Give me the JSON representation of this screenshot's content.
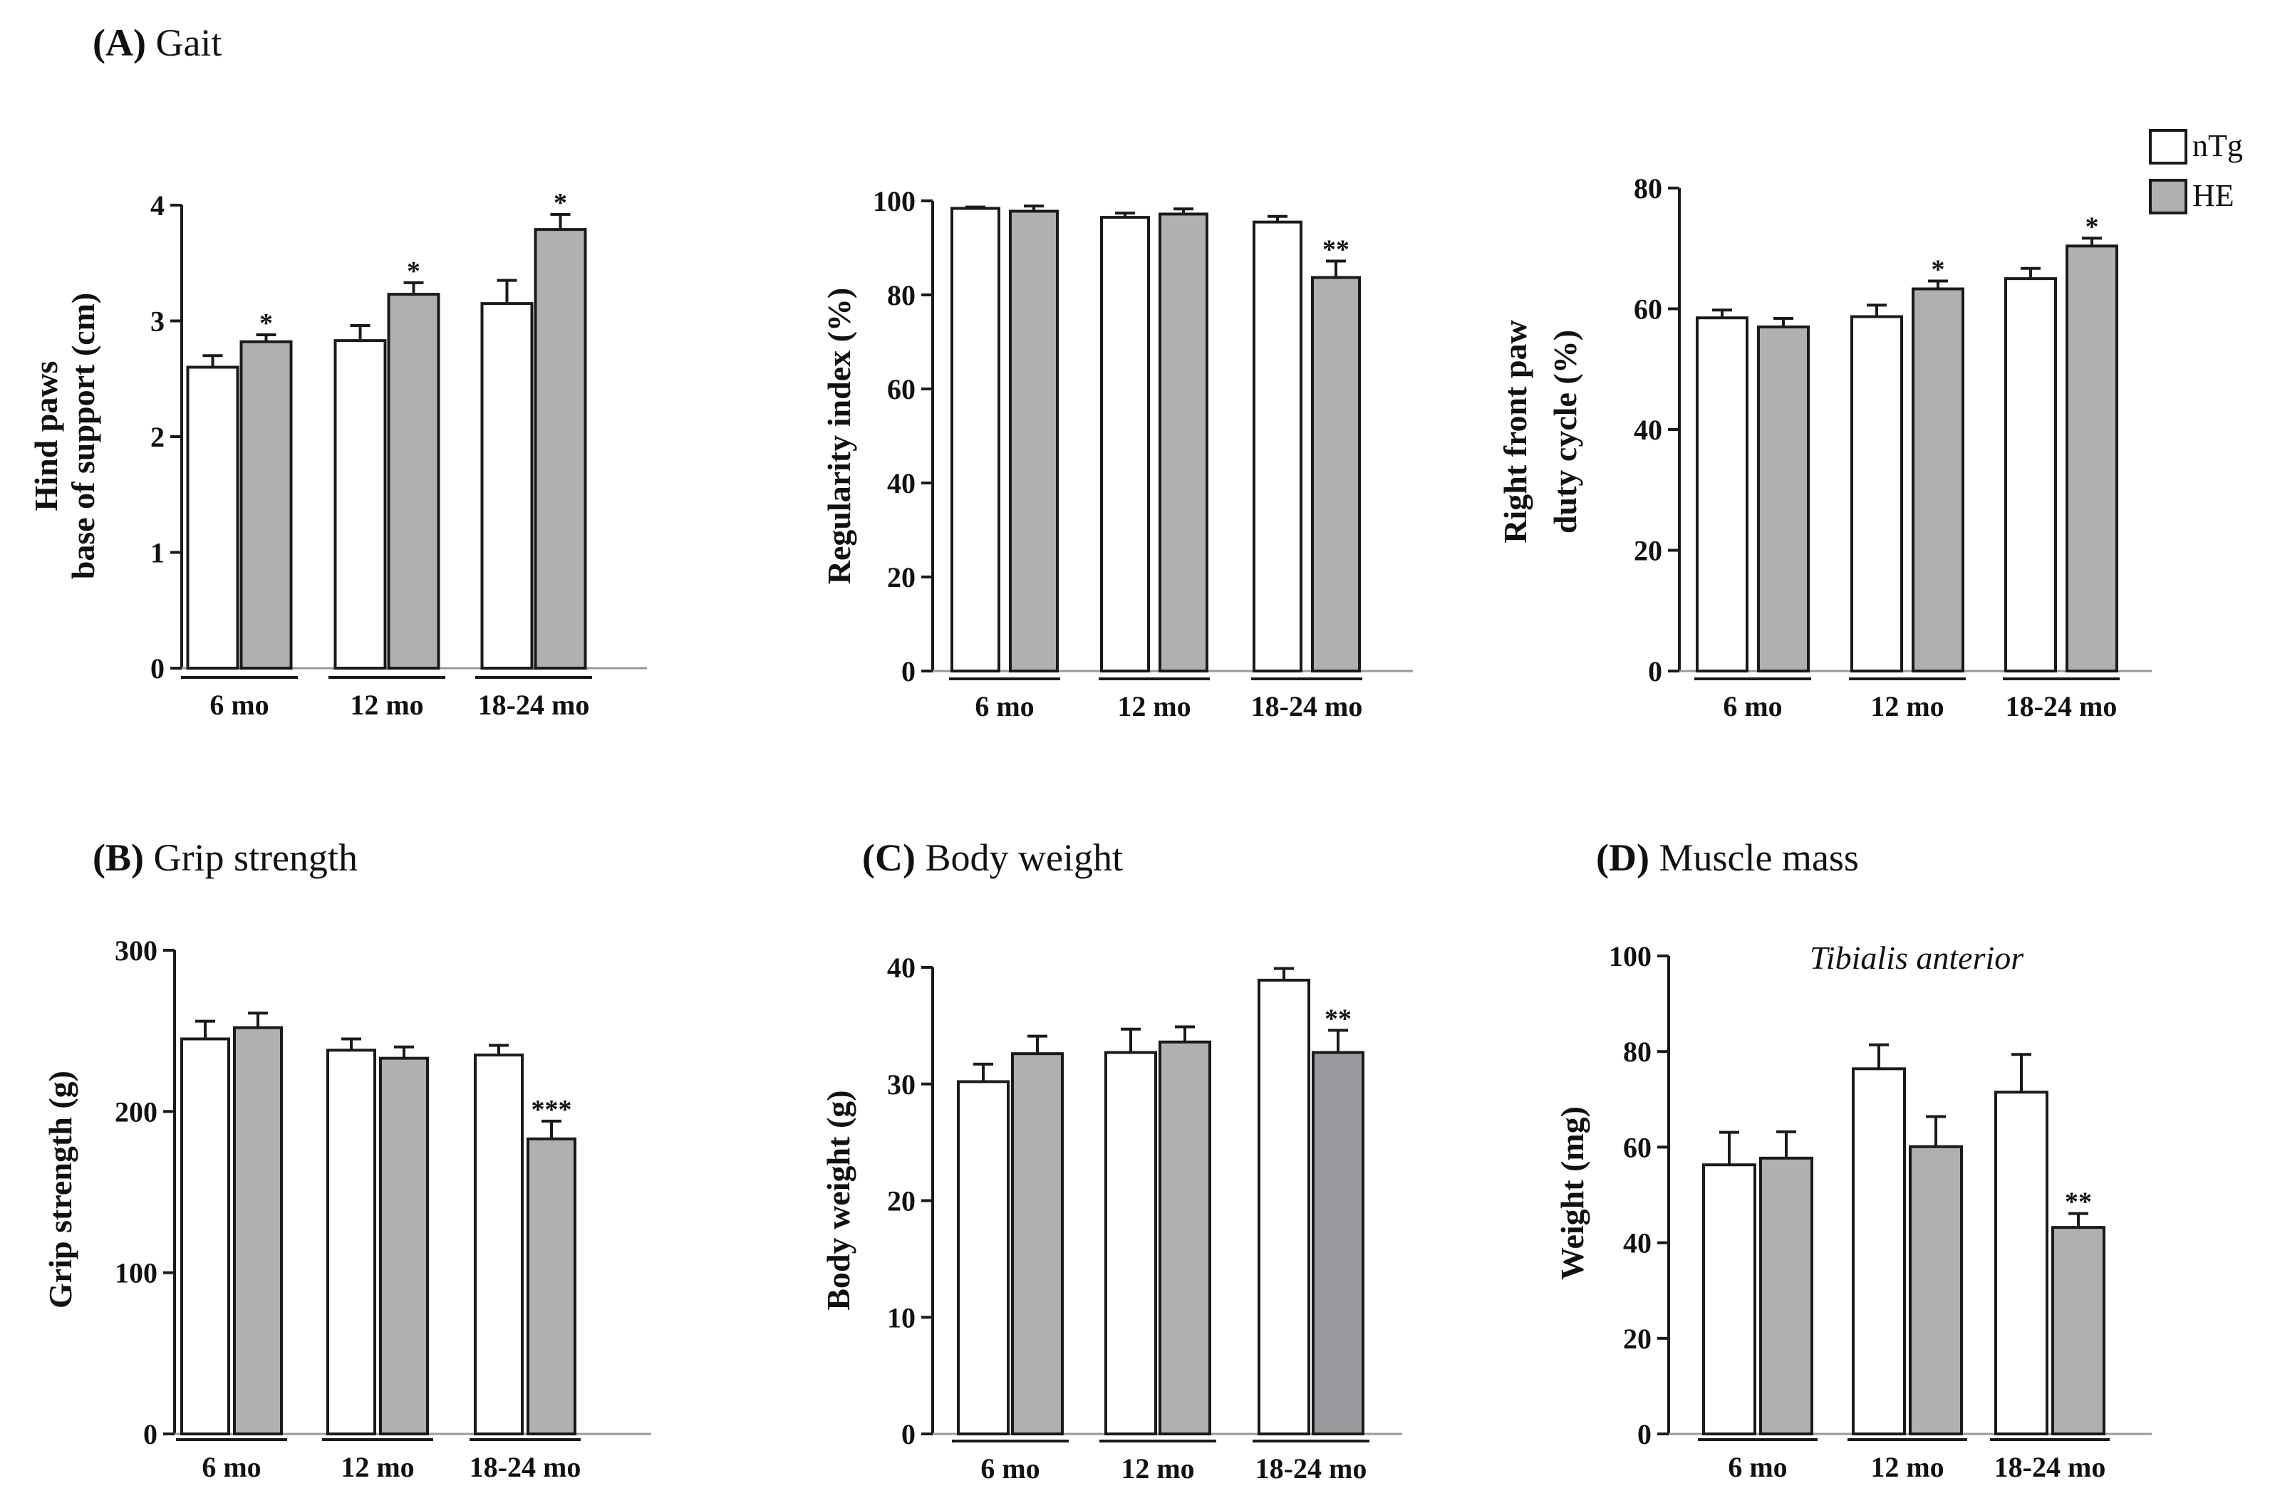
{
  "legend": [
    {
      "label": "nTg",
      "color": "#ffffff"
    },
    {
      "label": "HE",
      "color": "#b0b0b0"
    }
  ],
  "colors": {
    "ntg": "#ffffff",
    "he": "#b0b0b0",
    "he_dark": "#9a9a9f",
    "stroke": "#1a1a1a"
  },
  "chart_data": [
    {
      "type": "bar",
      "panel_label": "(A)",
      "panel_title": "Gait",
      "categories": [
        "6 mo",
        "12 mo",
        "18-24 mo"
      ],
      "ylabel": [
        "Hind paws",
        "base of support (cm)"
      ],
      "ylim": [
        0,
        4
      ],
      "yticks": [
        0,
        1,
        2,
        3,
        4
      ],
      "series": [
        {
          "name": "nTg",
          "values": [
            2.6,
            2.83,
            3.15
          ],
          "errors": [
            0.1,
            0.13,
            0.2
          ]
        },
        {
          "name": "HE",
          "values": [
            2.82,
            3.23,
            3.79
          ],
          "errors": [
            0.06,
            0.1,
            0.13
          ]
        }
      ],
      "significance": [
        {
          "category": 0,
          "series": 1,
          "label": "*"
        },
        {
          "category": 1,
          "series": 1,
          "label": "*"
        },
        {
          "category": 2,
          "series": 1,
          "label": "*"
        }
      ]
    },
    {
      "type": "bar",
      "panel_label": "",
      "panel_title": "",
      "categories": [
        "6 mo",
        "12 mo",
        "18-24 mo"
      ],
      "ylabel": [
        "Regularity index (%)"
      ],
      "ylim": [
        0,
        100
      ],
      "yticks": [
        0,
        20,
        40,
        60,
        80,
        100
      ],
      "series": [
        {
          "name": "nTg",
          "values": [
            98.4,
            96.5,
            95.5
          ],
          "errors": [
            0.3,
            0.9,
            1.2
          ]
        },
        {
          "name": "HE",
          "values": [
            97.8,
            97.2,
            83.7
          ],
          "errors": [
            1.1,
            1.1,
            3.5
          ]
        }
      ],
      "significance": [
        {
          "category": 2,
          "series": 1,
          "label": "**"
        }
      ]
    },
    {
      "type": "bar",
      "panel_label": "",
      "panel_title": "",
      "categories": [
        "6 mo",
        "12 mo",
        "18-24 mo"
      ],
      "ylabel": [
        "Right front paw",
        "duty cycle (%)"
      ],
      "ylim": [
        0,
        80
      ],
      "yticks": [
        0,
        20,
        40,
        60,
        80
      ],
      "series": [
        {
          "name": "nTg",
          "values": [
            58.5,
            58.7,
            65.0
          ],
          "errors": [
            1.3,
            1.9,
            1.7
          ]
        },
        {
          "name": "HE",
          "values": [
            57.0,
            63.3,
            70.4
          ],
          "errors": [
            1.4,
            1.3,
            1.3
          ]
        }
      ],
      "significance": [
        {
          "category": 1,
          "series": 1,
          "label": "*"
        },
        {
          "category": 2,
          "series": 1,
          "label": "*"
        }
      ]
    },
    {
      "type": "bar",
      "panel_label": "(B)",
      "panel_title": "Grip strength",
      "categories": [
        "6 mo",
        "12 mo",
        "18-24 mo"
      ],
      "ylabel": [
        "Grip strength (g)"
      ],
      "ylim": [
        0,
        300
      ],
      "yticks": [
        0,
        100,
        200,
        300
      ],
      "series": [
        {
          "name": "nTg",
          "values": [
            245,
            238,
            235
          ],
          "errors": [
            11,
            7,
            6
          ]
        },
        {
          "name": "HE",
          "values": [
            252,
            233,
            183
          ],
          "errors": [
            9,
            7,
            11
          ]
        }
      ],
      "significance": [
        {
          "category": 2,
          "series": 1,
          "label": "***"
        }
      ]
    },
    {
      "type": "bar",
      "panel_label": "(C)",
      "panel_title": "Body weight",
      "categories": [
        "6 mo",
        "12 mo",
        "18-24 mo"
      ],
      "ylabel": [
        "Body weight (g)"
      ],
      "ylim": [
        0,
        40
      ],
      "yticks": [
        0,
        10,
        20,
        30,
        40
      ],
      "series": [
        {
          "name": "nTg",
          "values": [
            30.2,
            32.7,
            38.9
          ],
          "errors": [
            1.5,
            2.0,
            1.0
          ]
        },
        {
          "name": "HE",
          "values": [
            32.6,
            33.6,
            32.7
          ],
          "errors": [
            1.5,
            1.3,
            1.9
          ]
        }
      ],
      "significance": [
        {
          "category": 2,
          "series": 1,
          "label": "**"
        }
      ]
    },
    {
      "type": "bar",
      "panel_label": "(D)",
      "panel_title": "Muscle mass",
      "annotation": "Tibialis anterior",
      "categories": [
        "6 mo",
        "12 mo",
        "18-24 mo"
      ],
      "ylabel": [
        "Weight (mg)"
      ],
      "ylim": [
        0,
        100
      ],
      "yticks": [
        0,
        20,
        40,
        60,
        80,
        100
      ],
      "series": [
        {
          "name": "nTg",
          "values": [
            56.3,
            76.4,
            71.5
          ],
          "errors": [
            6.8,
            5.0,
            7.9
          ]
        },
        {
          "name": "HE",
          "values": [
            57.7,
            60.1,
            43.2
          ],
          "errors": [
            5.5,
            6.3,
            2.9
          ]
        }
      ],
      "significance": [
        {
          "category": 2,
          "series": 1,
          "label": "**"
        }
      ]
    }
  ]
}
